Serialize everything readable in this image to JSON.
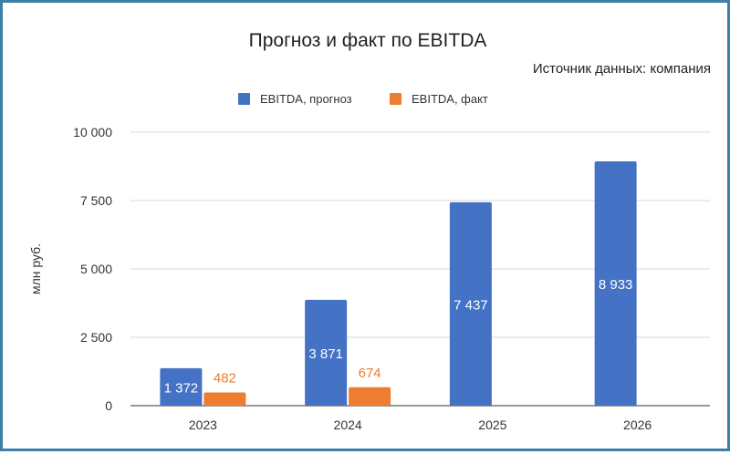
{
  "chart_data": {
    "type": "bar",
    "title": "Прогноз и факт по EBITDA",
    "subtitle": "Источник данных: компания",
    "ylabel": "млн руб.",
    "xlabel": "",
    "categories": [
      "2023",
      "2024",
      "2025",
      "2026"
    ],
    "series": [
      {
        "name": "EBITDA, прогноз",
        "color": "#4472c4",
        "values": [
          1372,
          3871,
          7437,
          8933
        ],
        "labels": [
          "1 372",
          "3 871",
          "7 437",
          "8 933"
        ]
      },
      {
        "name": "EBITDA, факт",
        "color": "#ed7d31",
        "values": [
          482,
          674,
          null,
          null
        ],
        "labels": [
          "482",
          "674",
          null,
          null
        ]
      }
    ],
    "ylim": [
      0,
      10000
    ],
    "yticks": [
      0,
      2500,
      5000,
      7500,
      10000
    ],
    "ytick_labels": [
      "0",
      "2 500",
      "5 000",
      "7 500",
      "10 000"
    ],
    "grid": true,
    "legend_position": "top"
  }
}
